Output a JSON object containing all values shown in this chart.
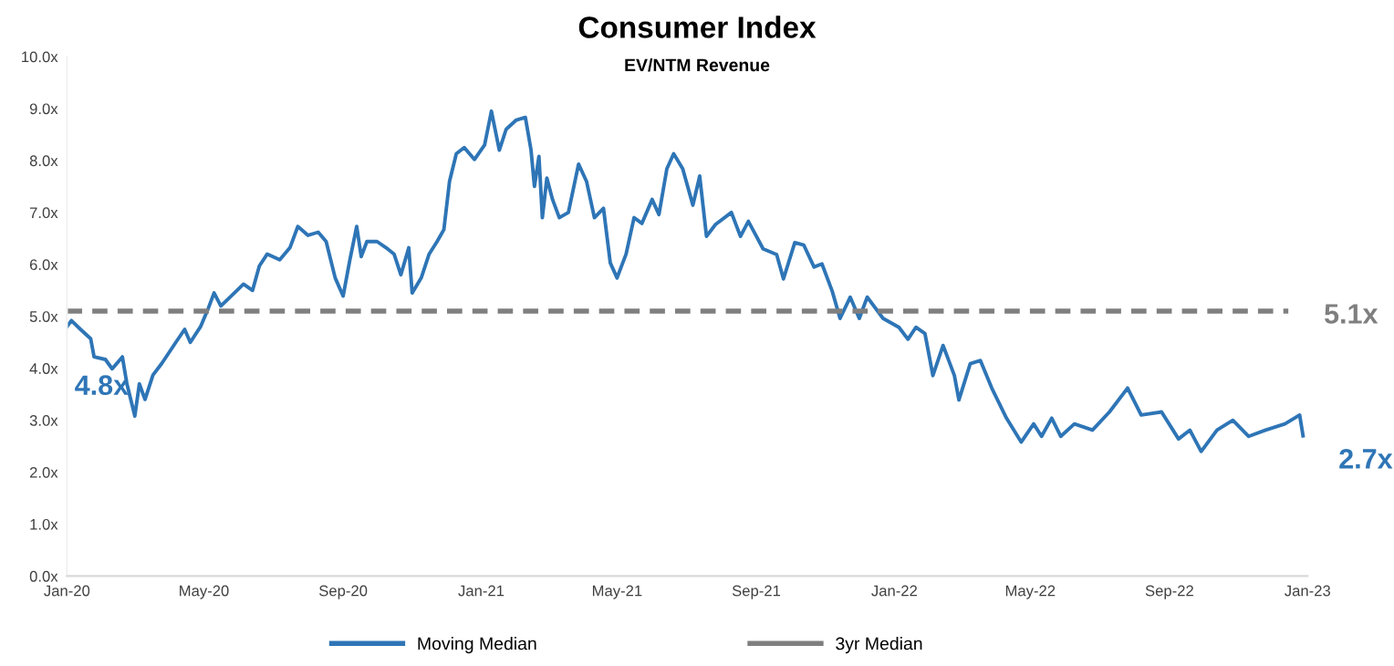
{
  "chart_data": {
    "type": "line",
    "title": "Consumer Index",
    "subtitle": "EV/NTM Revenue",
    "xlim": [
      "2020-01-01",
      "2023-01-01"
    ],
    "xticks": [
      {
        "value": "2020-01-01",
        "label": "Jan-20"
      },
      {
        "value": "2020-05-01",
        "label": "May-20"
      },
      {
        "value": "2020-09-01",
        "label": "Sep-20"
      },
      {
        "value": "2021-01-01",
        "label": "Jan-21"
      },
      {
        "value": "2021-05-01",
        "label": "May-21"
      },
      {
        "value": "2021-09-01",
        "label": "Sep-21"
      },
      {
        "value": "2022-01-01",
        "label": "Jan-22"
      },
      {
        "value": "2022-05-01",
        "label": "May-22"
      },
      {
        "value": "2022-09-01",
        "label": "Sep-22"
      },
      {
        "value": "2023-01-01",
        "label": "Jan-23"
      }
    ],
    "ylim": [
      0,
      10
    ],
    "yticks": [
      {
        "value": 0,
        "label": "0.0x"
      },
      {
        "value": 1,
        "label": "1.0x"
      },
      {
        "value": 2,
        "label": "2.0x"
      },
      {
        "value": 3,
        "label": "3.0x"
      },
      {
        "value": 4,
        "label": "4.0x"
      },
      {
        "value": 5,
        "label": "5.0x"
      },
      {
        "value": 6,
        "label": "6.0x"
      },
      {
        "value": 7,
        "label": "7.0x"
      },
      {
        "value": 8,
        "label": "8.0x"
      },
      {
        "value": 9,
        "label": "9.0x"
      },
      {
        "value": 10,
        "label": "10.0x"
      }
    ],
    "grid": false,
    "legend": "bottom",
    "series": [
      {
        "name": "Moving Median",
        "color": "#2e75b6",
        "line_style": "solid",
        "x": [
          "2020-01-01",
          "2020-01-05",
          "2020-01-13",
          "2020-01-22",
          "2020-01-25",
          "2020-02-04",
          "2020-02-10",
          "2020-02-19",
          "2020-02-23",
          "2020-03-01",
          "2020-03-05",
          "2020-03-10",
          "2020-03-17",
          "2020-03-25",
          "2020-04-05",
          "2020-04-14",
          "2020-04-19",
          "2020-04-28",
          "2020-05-05",
          "2020-05-10",
          "2020-05-16",
          "2020-05-25",
          "2020-06-05",
          "2020-06-13",
          "2020-06-19",
          "2020-06-26",
          "2020-07-07",
          "2020-07-16",
          "2020-07-23",
          "2020-08-01",
          "2020-08-10",
          "2020-08-17",
          "2020-08-25",
          "2020-09-01",
          "2020-09-07",
          "2020-09-13",
          "2020-09-17",
          "2020-09-22",
          "2020-10-01",
          "2020-10-09",
          "2020-10-16",
          "2020-10-22",
          "2020-10-29",
          "2020-11-01",
          "2020-11-09",
          "2020-11-16",
          "2020-11-23",
          "2020-11-29",
          "2020-12-04",
          "2020-12-10",
          "2020-12-17",
          "2020-12-26",
          "2021-01-04",
          "2021-01-10",
          "2021-01-17",
          "2021-01-23",
          "2021-02-01",
          "2021-02-09",
          "2021-02-14",
          "2021-02-17",
          "2021-02-21",
          "2021-02-24",
          "2021-02-28",
          "2021-03-05",
          "2021-03-11",
          "2021-03-19",
          "2021-03-28",
          "2021-04-04",
          "2021-04-11",
          "2021-04-19",
          "2021-04-25",
          "2021-05-01",
          "2021-05-09",
          "2021-05-16",
          "2021-05-23",
          "2021-06-01",
          "2021-06-07",
          "2021-06-14",
          "2021-06-20",
          "2021-06-28",
          "2021-07-07",
          "2021-07-13",
          "2021-07-19",
          "2021-07-27",
          "2021-08-10",
          "2021-08-18",
          "2021-08-25",
          "2021-09-07",
          "2021-09-19",
          "2021-09-25",
          "2021-10-05",
          "2021-10-13",
          "2021-10-22",
          "2021-10-29",
          "2021-11-07",
          "2021-11-14",
          "2021-11-23",
          "2021-12-01",
          "2021-12-08",
          "2021-12-22",
          "2022-01-05",
          "2022-01-13",
          "2022-01-20",
          "2022-01-28",
          "2022-02-04",
          "2022-02-13",
          "2022-02-23",
          "2022-02-27",
          "2022-03-09",
          "2022-03-18",
          "2022-03-28",
          "2022-04-10",
          "2022-04-23",
          "2022-05-04",
          "2022-05-11",
          "2022-05-20",
          "2022-05-28",
          "2022-06-09",
          "2022-06-25",
          "2022-07-10",
          "2022-07-26",
          "2022-08-07",
          "2022-08-25",
          "2022-09-09",
          "2022-09-19",
          "2022-09-29",
          "2022-10-13",
          "2022-10-27",
          "2022-11-10",
          "2022-11-25",
          "2022-12-12",
          "2022-12-25",
          "2022-12-28"
        ],
        "values": [
          4.8,
          4.92,
          4.75,
          4.57,
          4.22,
          4.17,
          3.99,
          4.22,
          3.7,
          3.08,
          3.7,
          3.4,
          3.87,
          4.1,
          4.46,
          4.75,
          4.5,
          4.8,
          5.16,
          5.45,
          5.2,
          5.39,
          5.62,
          5.5,
          5.97,
          6.2,
          6.09,
          6.32,
          6.73,
          6.56,
          6.62,
          6.44,
          5.74,
          5.39,
          6.09,
          6.73,
          6.15,
          6.44,
          6.44,
          6.32,
          6.2,
          5.8,
          6.32,
          5.45,
          5.74,
          6.2,
          6.44,
          6.67,
          7.6,
          8.13,
          8.25,
          8.02,
          8.3,
          8.95,
          8.2,
          8.6,
          8.78,
          8.83,
          8.2,
          7.5,
          8.08,
          6.9,
          7.66,
          7.25,
          6.9,
          7.0,
          7.93,
          7.6,
          6.9,
          7.08,
          6.03,
          5.74,
          6.2,
          6.9,
          6.79,
          7.25,
          6.96,
          7.84,
          8.13,
          7.84,
          7.14,
          7.7,
          6.54,
          6.77,
          7.0,
          6.54,
          6.83,
          6.3,
          6.19,
          5.72,
          6.42,
          6.37,
          5.95,
          6.01,
          5.49,
          4.96,
          5.37,
          4.96,
          5.37,
          4.96,
          4.79,
          4.56,
          4.79,
          4.67,
          3.86,
          4.44,
          3.86,
          3.39,
          4.09,
          4.15,
          3.62,
          3.04,
          2.58,
          2.93,
          2.69,
          3.04,
          2.69,
          2.93,
          2.81,
          3.16,
          3.62,
          3.1,
          3.16,
          2.64,
          2.81,
          2.4,
          2.81,
          3.0,
          2.69,
          2.81,
          2.93,
          3.1,
          2.7
        ]
      },
      {
        "name": "3yr Median",
        "color": "#7f7f7f",
        "line_style": "dashed",
        "x": [
          "2020-01-01",
          "2022-12-15"
        ],
        "values": [
          5.1,
          5.1
        ]
      }
    ],
    "annotations": [
      {
        "text": "4.8x",
        "x": "2020-01-01",
        "y": 4.8
      },
      {
        "text": "5.1x",
        "x": "2022-12-15",
        "y": 5.1
      },
      {
        "text": "2.7x",
        "x": "2022-12-28",
        "y": 2.7
      }
    ]
  }
}
